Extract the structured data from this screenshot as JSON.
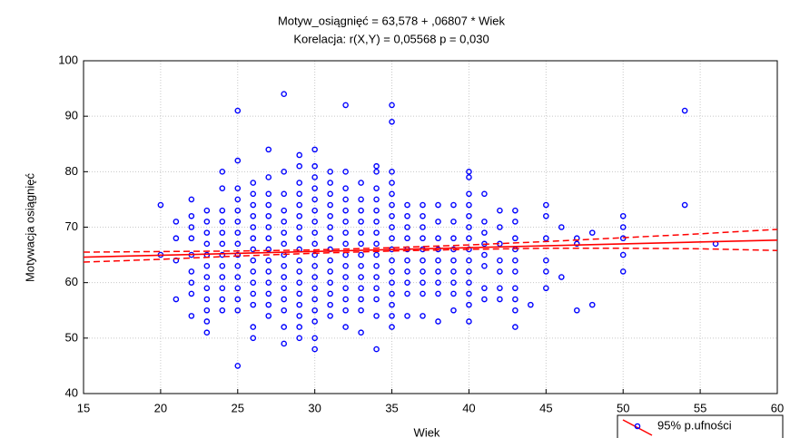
{
  "chart_data": {
    "type": "scatter",
    "title": "Motyw_osiągnięć = 63,578 + ,06807 * Wiek",
    "subtitle": "Korelacja: r(X,Y) = 0,05568   p = 0,030",
    "x_label": "Wiek",
    "y_label": "Motywacja osiągnięć",
    "xlim": [
      15,
      60
    ],
    "xticks": [
      15,
      20,
      25,
      30,
      35,
      40,
      45,
      50,
      55,
      60
    ],
    "ylim": [
      40,
      100
    ],
    "yticks": [
      40,
      50,
      60,
      70,
      80,
      90,
      100
    ],
    "grid": true,
    "legend": "bottom-right",
    "series": [
      {
        "name": "95% p.ufności",
        "color": "#0000ff",
        "x": [
          20,
          20,
          21,
          21,
          21,
          21,
          22,
          22,
          22,
          22,
          22,
          22,
          22,
          22,
          22,
          23,
          23,
          23,
          23,
          23,
          23,
          23,
          23,
          23,
          23,
          23,
          23,
          24,
          24,
          24,
          24,
          24,
          24,
          24,
          24,
          24,
          24,
          24,
          24,
          25,
          25,
          25,
          25,
          25,
          25,
          25,
          25,
          25,
          25,
          25,
          25,
          25,
          25,
          25,
          26,
          26,
          26,
          26,
          26,
          26,
          26,
          26,
          26,
          26,
          26,
          26,
          26,
          26,
          27,
          27,
          27,
          27,
          27,
          27,
          27,
          27,
          27,
          27,
          27,
          27,
          27,
          27,
          28,
          28,
          28,
          28,
          28,
          28,
          28,
          28,
          28,
          28,
          28,
          28,
          28,
          28,
          28,
          29,
          29,
          29,
          29,
          29,
          29,
          29,
          29,
          29,
          29,
          29,
          29,
          29,
          29,
          29,
          29,
          29,
          30,
          30,
          30,
          30,
          30,
          30,
          30,
          30,
          30,
          30,
          30,
          30,
          30,
          30,
          30,
          30,
          30,
          30,
          31,
          31,
          31,
          31,
          31,
          31,
          31,
          31,
          31,
          31,
          31,
          31,
          31,
          31,
          32,
          32,
          32,
          32,
          32,
          32,
          32,
          32,
          32,
          32,
          32,
          32,
          32,
          32,
          32,
          33,
          33,
          33,
          33,
          33,
          33,
          33,
          33,
          33,
          33,
          33,
          33,
          33,
          34,
          34,
          34,
          34,
          34,
          34,
          34,
          34,
          34,
          34,
          34,
          34,
          34,
          34,
          34,
          35,
          35,
          35,
          35,
          35,
          35,
          35,
          35,
          35,
          35,
          35,
          35,
          35,
          35,
          35,
          35,
          35,
          36,
          36,
          36,
          36,
          36,
          36,
          36,
          36,
          36,
          36,
          37,
          37,
          37,
          37,
          37,
          37,
          37,
          37,
          37,
          37,
          38,
          38,
          38,
          38,
          38,
          38,
          38,
          38,
          38,
          39,
          39,
          39,
          39,
          39,
          39,
          39,
          39,
          39,
          40,
          40,
          40,
          40,
          40,
          40,
          40,
          40,
          40,
          40,
          40,
          40,
          40,
          40,
          41,
          41,
          41,
          41,
          41,
          41,
          41,
          41,
          42,
          42,
          42,
          42,
          42,
          42,
          42,
          43,
          43,
          43,
          43,
          43,
          43,
          43,
          43,
          43,
          43,
          44,
          45,
          45,
          45,
          45,
          45,
          45,
          46,
          46,
          47,
          47,
          47,
          48,
          48,
          50,
          50,
          50,
          50,
          50,
          54,
          54,
          56
        ],
        "values": [
          74,
          65,
          71,
          68,
          64,
          57,
          75,
          72,
          70,
          68,
          65,
          62,
          60,
          58,
          54,
          73,
          71,
          69,
          67,
          65,
          63,
          61,
          59,
          57,
          55,
          53,
          51,
          80,
          77,
          73,
          71,
          69,
          67,
          65,
          63,
          61,
          59,
          57,
          55,
          91,
          82,
          77,
          75,
          73,
          71,
          69,
          67,
          65,
          63,
          61,
          59,
          57,
          55,
          45,
          78,
          76,
          74,
          72,
          70,
          68,
          66,
          64,
          62,
          60,
          58,
          56,
          52,
          50,
          84,
          79,
          76,
          74,
          72,
          70,
          68,
          66,
          64,
          62,
          60,
          58,
          56,
          54,
          94,
          80,
          76,
          73,
          71,
          69,
          67,
          65,
          63,
          61,
          59,
          57,
          55,
          52,
          49,
          83,
          81,
          78,
          76,
          74,
          72,
          70,
          68,
          66,
          64,
          62,
          60,
          58,
          56,
          54,
          52,
          50,
          84,
          81,
          79,
          77,
          75,
          73,
          71,
          69,
          67,
          65,
          63,
          61,
          59,
          57,
          55,
          53,
          50,
          48,
          80,
          78,
          76,
          74,
          72,
          70,
          68,
          66,
          64,
          62,
          60,
          58,
          56,
          54,
          92,
          80,
          77,
          75,
          73,
          71,
          69,
          67,
          65,
          63,
          61,
          59,
          57,
          55,
          52,
          78,
          75,
          73,
          71,
          69,
          67,
          65,
          63,
          61,
          59,
          57,
          55,
          51,
          81,
          80,
          77,
          75,
          73,
          71,
          69,
          67,
          65,
          63,
          61,
          59,
          57,
          54,
          48,
          92,
          89,
          80,
          78,
          76,
          74,
          72,
          70,
          68,
          66,
          64,
          62,
          60,
          58,
          56,
          54,
          52,
          74,
          72,
          70,
          68,
          66,
          64,
          62,
          60,
          58,
          54,
          74,
          72,
          70,
          68,
          66,
          64,
          62,
          60,
          58,
          54,
          74,
          71,
          68,
          66,
          64,
          62,
          60,
          58,
          53,
          74,
          71,
          68,
          66,
          64,
          62,
          60,
          58,
          55,
          80,
          79,
          76,
          74,
          72,
          70,
          68,
          66,
          64,
          62,
          60,
          58,
          56,
          53,
          76,
          71,
          69,
          67,
          65,
          63,
          59,
          57,
          73,
          70,
          67,
          64,
          62,
          59,
          57,
          73,
          71,
          68,
          66,
          64,
          62,
          59,
          57,
          55,
          52,
          56,
          74,
          72,
          68,
          64,
          62,
          59,
          70,
          61,
          68,
          67,
          55,
          69,
          56,
          72,
          70,
          68,
          65,
          62,
          91,
          74,
          67
        ]
      }
    ],
    "fit": {
      "intercept": 63.578,
      "slope": 0.06807,
      "color": "#ff0000"
    },
    "ci": {
      "x": [
        15,
        20,
        25,
        30,
        35,
        40,
        45,
        50,
        55,
        60
      ],
      "upper": [
        65.5,
        65.6,
        65.7,
        65.9,
        66.3,
        66.8,
        67.4,
        68.1,
        68.8,
        69.6
      ],
      "lower": [
        63.7,
        64.2,
        64.8,
        65.3,
        65.7,
        66.0,
        66.2,
        66.2,
        66.1,
        65.8
      ],
      "color": "#ff0000"
    }
  }
}
